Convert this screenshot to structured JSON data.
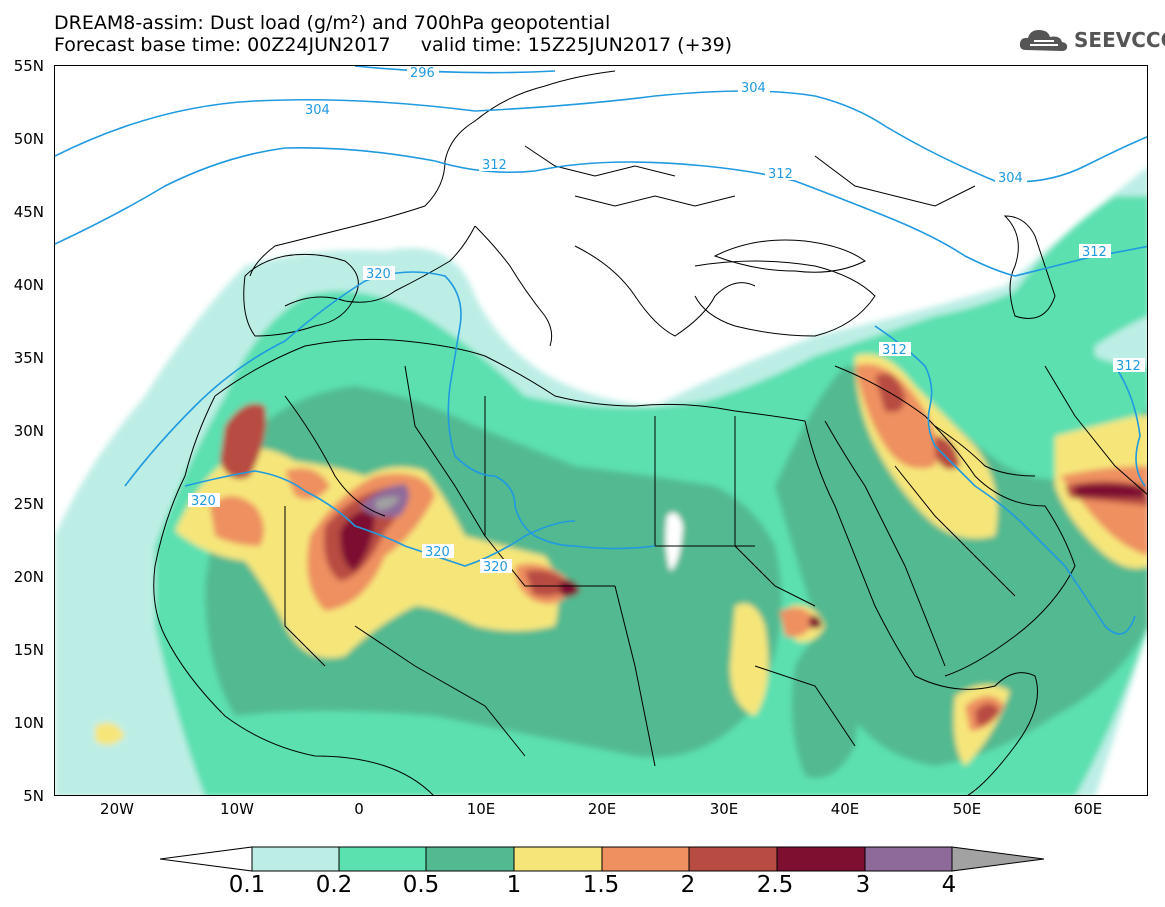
{
  "header": {
    "line1": "DREAM8-assim: Dust load (g/m²) and 700hPa geopotential",
    "line2": "Forecast base time: 00Z24JUN2017     valid time: 15Z25JUN2017 (+39)"
  },
  "logo": {
    "icon": "cloud-icon",
    "text": "SEEVCCC"
  },
  "map": {
    "lat_labels": [
      "55N",
      "50N",
      "45N",
      "40N",
      "35N",
      "30N",
      "25N",
      "20N",
      "15N",
      "10N",
      "5N"
    ],
    "lon_labels": [
      "20W",
      "10W",
      "0",
      "10E",
      "20E",
      "30E",
      "40E",
      "50E",
      "60E"
    ],
    "contours": [
      "296",
      "304",
      "304",
      "304",
      "312",
      "312",
      "312",
      "312",
      "312",
      "320",
      "320",
      "320",
      "320"
    ]
  },
  "colorbar": {
    "labels": [
      "0.1",
      "0.2",
      "0.5",
      "1",
      "1.5",
      "2",
      "2.5",
      "3",
      "4"
    ],
    "colors": [
      "#bdeee6",
      "#5be0b0",
      "#52b990",
      "#f6e67a",
      "#ee9060",
      "#b84c42",
      "#7e0f30",
      "#8e6a9a",
      "#a2a2a2"
    ]
  }
}
